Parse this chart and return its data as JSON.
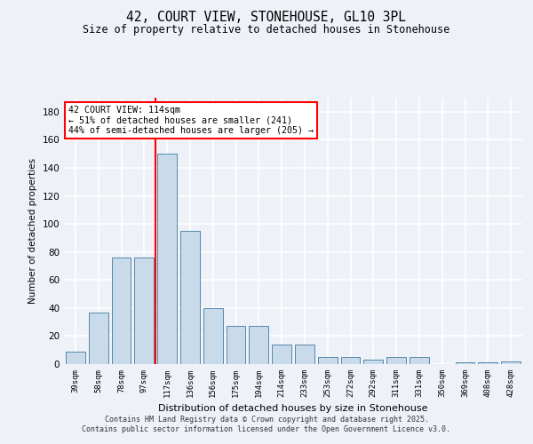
{
  "title": "42, COURT VIEW, STONEHOUSE, GL10 3PL",
  "subtitle": "Size of property relative to detached houses in Stonehouse",
  "xlabel": "Distribution of detached houses by size in Stonehouse",
  "ylabel": "Number of detached properties",
  "bar_color": "#c9daea",
  "bar_edge_color": "#5588aa",
  "categories": [
    "39sqm",
    "58sqm",
    "78sqm",
    "97sqm",
    "117sqm",
    "136sqm",
    "156sqm",
    "175sqm",
    "194sqm",
    "214sqm",
    "233sqm",
    "253sqm",
    "272sqm",
    "292sqm",
    "311sqm",
    "331sqm",
    "350sqm",
    "369sqm",
    "408sqm",
    "428sqm"
  ],
  "values": [
    9,
    37,
    76,
    76,
    150,
    95,
    40,
    27,
    27,
    14,
    14,
    5,
    5,
    3,
    5,
    5,
    0,
    1,
    1,
    2
  ],
  "red_line_index": 4,
  "annotation_text": "42 COURT VIEW: 114sqm\n← 51% of detached houses are smaller (241)\n44% of semi-detached houses are larger (205) →",
  "annotation_box_color": "white",
  "annotation_box_edge": "red",
  "ylim": [
    0,
    190
  ],
  "yticks": [
    0,
    20,
    40,
    60,
    80,
    100,
    120,
    140,
    160,
    180
  ],
  "footer": "Contains HM Land Registry data © Crown copyright and database right 2025.\nContains public sector information licensed under the Open Government Licence v3.0.",
  "background_color": "#eef2f8",
  "grid_color": "white"
}
